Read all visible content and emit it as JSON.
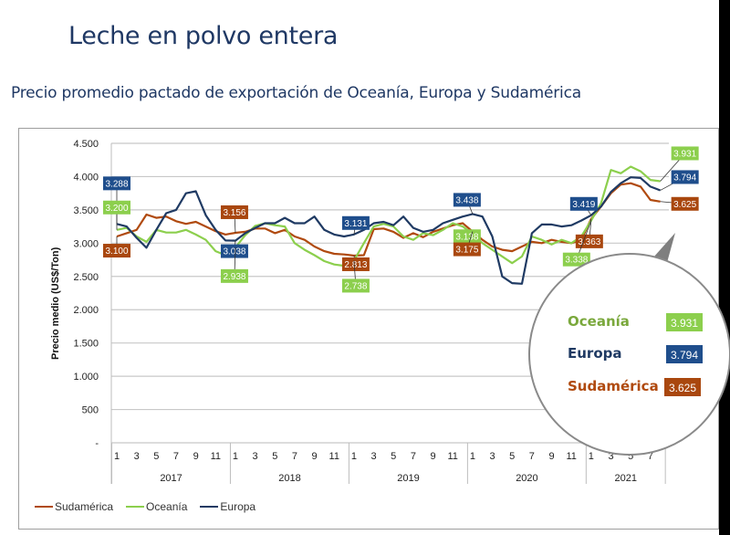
{
  "header": {
    "title": "Leche en polvo entera",
    "subtitle": "Precio promedio pactado de exportación de Oceanía, Europa y Sudamérica"
  },
  "colors": {
    "title": "#1f3864",
    "sudamerica": "#b04a0f",
    "oceania": "#8ccf4d",
    "europa": "#1f3a63"
  },
  "chart_data": {
    "type": "line",
    "title": "Precio promedio pactado de exportación de Oceanía, Europa y Sudamérica",
    "xlabel": "",
    "ylabel": "Precio medio (US$/Ton)",
    "ylim": [
      0,
      4500
    ],
    "yticks": [
      0,
      500,
      1000,
      1500,
      2000,
      2500,
      3000,
      3500,
      4000,
      4500
    ],
    "ytick_labels": [
      "-",
      "500",
      "1.000",
      "1.500",
      "2.000",
      "2.500",
      "3.000",
      "3.500",
      "4.000",
      "4.500"
    ],
    "grid": true,
    "legend_position": "bottom-left",
    "years": [
      {
        "year": "2017",
        "months": 12
      },
      {
        "year": "2018",
        "months": 12
      },
      {
        "year": "2019",
        "months": 12
      },
      {
        "year": "2020",
        "months": 12
      },
      {
        "year": "2021",
        "months": 8
      }
    ],
    "month_tick_labels": [
      "1",
      "3",
      "5",
      "7",
      "9",
      "11"
    ],
    "month_tick_labels_2021": [
      "1",
      "3",
      "5",
      "7"
    ],
    "series": [
      {
        "name": "Sudamérica",
        "color": "#b04a0f",
        "values": [
          3100,
          3150,
          3200,
          3430,
          3380,
          3400,
          3330,
          3290,
          3320,
          3250,
          3180,
          3130,
          3156,
          3170,
          3220,
          3220,
          3150,
          3200,
          3100,
          3050,
          2950,
          2880,
          2840,
          2830,
          2813,
          2820,
          3210,
          3220,
          3170,
          3080,
          3150,
          3090,
          3170,
          3220,
          3270,
          3300,
          3175,
          3050,
          2950,
          2900,
          2880,
          2950,
          3020,
          3000,
          3050,
          3020,
          3000,
          3050,
          3363,
          3550,
          3750,
          3880,
          3900,
          3850,
          3650,
          3625
        ]
      },
      {
        "name": "Oceanía",
        "color": "#8ccf4d",
        "values": [
          3200,
          3230,
          3100,
          3020,
          3200,
          3160,
          3160,
          3200,
          3130,
          3050,
          2880,
          2820,
          2938,
          3120,
          3260,
          3300,
          3270,
          3250,
          3000,
          2900,
          2820,
          2730,
          2680,
          2660,
          2738,
          3000,
          3250,
          3290,
          3250,
          3100,
          3050,
          3150,
          3120,
          3200,
          3300,
          3250,
          3138,
          3000,
          2900,
          2800,
          2700,
          2800,
          3100,
          3050,
          2980,
          3050,
          3000,
          3100,
          3338,
          3600,
          4100,
          4050,
          4150,
          4080,
          3950,
          3931
        ]
      },
      {
        "name": "Europa",
        "color": "#1f3a63",
        "values": [
          3288,
          3250,
          3080,
          2930,
          3200,
          3450,
          3500,
          3750,
          3780,
          3420,
          3200,
          3040,
          3038,
          3150,
          3230,
          3300,
          3300,
          3380,
          3300,
          3300,
          3400,
          3200,
          3130,
          3100,
          3131,
          3200,
          3300,
          3320,
          3270,
          3400,
          3230,
          3170,
          3200,
          3300,
          3350,
          3400,
          3438,
          3400,
          3100,
          2500,
          2400,
          2390,
          3150,
          3280,
          3280,
          3250,
          3270,
          3340,
          3419,
          3550,
          3770,
          3900,
          3990,
          3980,
          3850,
          3794
        ]
      }
    ],
    "annotations": [
      {
        "series": "Europa",
        "month_index": 0,
        "text": "3.288"
      },
      {
        "series": "Oceanía",
        "month_index": 0,
        "text": "3.200"
      },
      {
        "series": "Sudamérica",
        "month_index": 0,
        "text": "3.100"
      },
      {
        "series": "Sudamérica",
        "month_index": 12,
        "text": "3.156"
      },
      {
        "series": "Europa",
        "month_index": 12,
        "text": "3.038"
      },
      {
        "series": "Oceanía",
        "month_index": 12,
        "text": "2.938"
      },
      {
        "series": "Europa",
        "month_index": 24,
        "text": "3.131"
      },
      {
        "series": "Sudamérica",
        "month_index": 24,
        "text": "2.813"
      },
      {
        "series": "Oceanía",
        "month_index": 24,
        "text": "2.738"
      },
      {
        "series": "Europa",
        "month_index": 36,
        "text": "3.438"
      },
      {
        "series": "Oceanía",
        "month_index": 36,
        "text": "3.138"
      },
      {
        "series": "Sudamérica",
        "month_index": 36,
        "text": "3.175"
      },
      {
        "series": "Europa",
        "month_index": 48,
        "text": "3.419"
      },
      {
        "series": "Sudamérica",
        "month_index": 48,
        "text": "3.363"
      },
      {
        "series": "Oceanía",
        "month_index": 48,
        "text": "3.338"
      },
      {
        "series": "Oceanía",
        "month_index": 55,
        "text": "3.931"
      },
      {
        "series": "Europa",
        "month_index": 55,
        "text": "3.794"
      },
      {
        "series": "Sudamérica",
        "month_index": 55,
        "text": "3.625"
      }
    ]
  },
  "legend": [
    {
      "label": "Sudamérica",
      "color": "#b04a0f"
    },
    {
      "label": "Oceanía",
      "color": "#8ccf4d"
    },
    {
      "label": "Europa",
      "color": "#1f3a63"
    }
  ],
  "magnifier": {
    "rows": [
      {
        "label": "Oceanía",
        "value": "3.931",
        "color": "#7aa83c",
        "box": "#8ccf4d"
      },
      {
        "label": "Europa",
        "value": "3.794",
        "color": "#1f3a63",
        "box": "#1f4e8c"
      },
      {
        "label": "Sudamérica",
        "value": "3.625",
        "color": "#b04a0f",
        "box": "#a9470e"
      }
    ]
  }
}
